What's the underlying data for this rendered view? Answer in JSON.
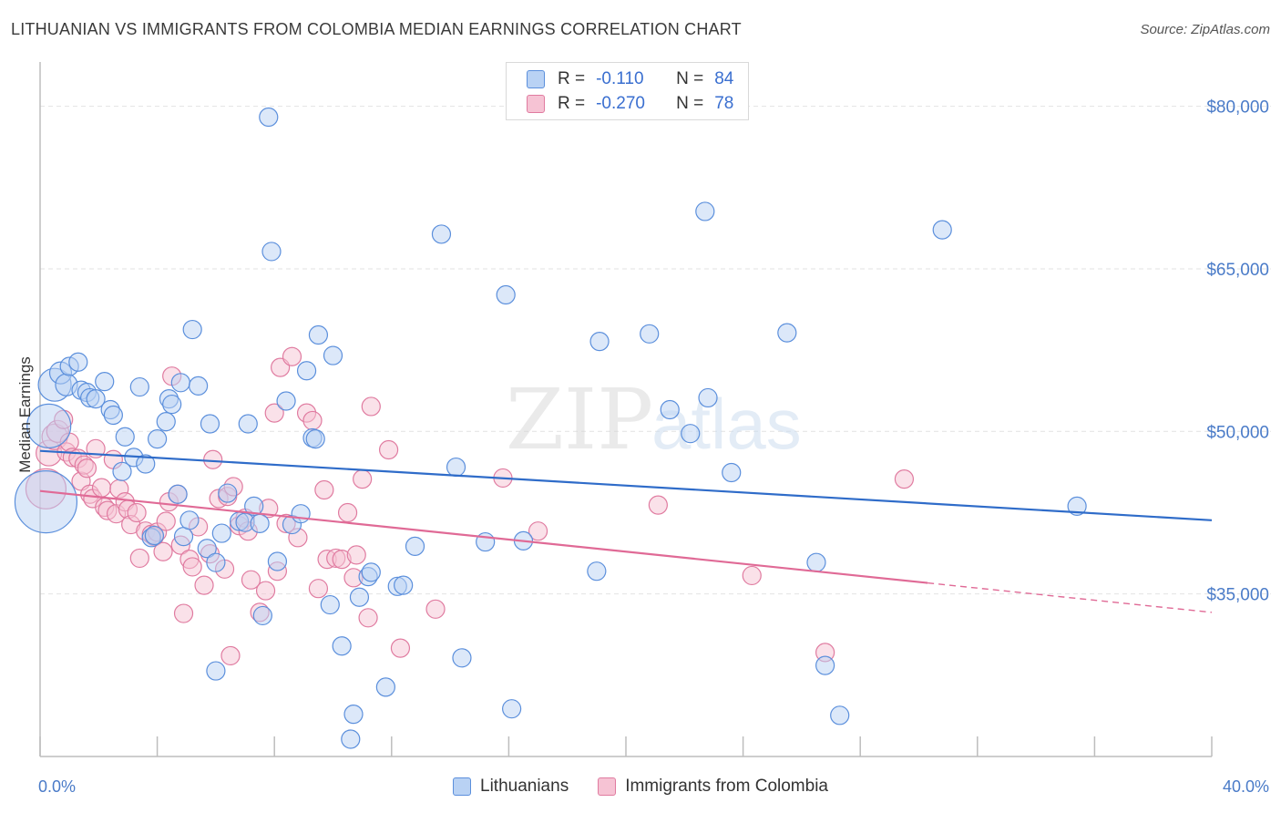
{
  "title": "LITHUANIAN VS IMMIGRANTS FROM COLOMBIA MEDIAN EARNINGS CORRELATION CHART",
  "source": "Source: ZipAtlas.com",
  "watermark": {
    "zip": "ZIP",
    "atlas": "atlas"
  },
  "legend": {
    "rows": [
      {
        "r_label": "R =",
        "r_value": "-0.110",
        "n_label": "N =",
        "n_value": "84"
      },
      {
        "r_label": "R =",
        "r_value": "-0.270",
        "n_label": "N =",
        "n_value": "78"
      }
    ]
  },
  "chart_data": {
    "type": "scatter",
    "title": "LITHUANIAN VS IMMIGRANTS FROM COLOMBIA MEDIAN EARNINGS CORRELATION CHART",
    "xlabel": "",
    "ylabel": "Median Earnings",
    "xlim": [
      0,
      40
    ],
    "ylim": [
      20000,
      83500
    ],
    "x_tick_labels": [
      {
        "value": 0,
        "label": "0.0%"
      },
      {
        "value": 40,
        "label": "40.0%"
      }
    ],
    "y_ticks": [
      {
        "value": 35000,
        "label": "$35,000"
      },
      {
        "value": 50000,
        "label": "$50,000"
      },
      {
        "value": 65000,
        "label": "$65,000"
      },
      {
        "value": 80000,
        "label": "$80,000"
      }
    ],
    "series": [
      {
        "name": "Lithuanians",
        "color": "#5b8fdc",
        "fill": "#b9d2f4",
        "r": -0.11,
        "n": 84,
        "trend": {
          "x": [
            0,
            40
          ],
          "y": [
            48200,
            41800
          ],
          "dashed_from": null
        },
        "points": [
          [
            0.2,
            43500,
            34
          ],
          [
            0.3,
            50500,
            24
          ],
          [
            0.5,
            54300,
            18
          ],
          [
            0.7,
            55400,
            12
          ],
          [
            0.9,
            54300,
            12
          ],
          [
            1.0,
            56000,
            10
          ],
          [
            1.3,
            56400,
            10
          ],
          [
            1.4,
            53800,
            10
          ],
          [
            1.6,
            53600,
            10
          ],
          [
            1.7,
            53100,
            10
          ],
          [
            1.9,
            53000,
            10
          ],
          [
            2.2,
            54600,
            10
          ],
          [
            2.4,
            52000,
            10
          ],
          [
            2.5,
            51500,
            10
          ],
          [
            2.8,
            46300,
            10
          ],
          [
            2.9,
            49500,
            10
          ],
          [
            3.2,
            47600,
            10
          ],
          [
            3.4,
            54100,
            10
          ],
          [
            3.6,
            47000,
            10
          ],
          [
            3.8,
            40200,
            10
          ],
          [
            3.9,
            40400,
            10
          ],
          [
            4.0,
            49300,
            10
          ],
          [
            4.3,
            50900,
            10
          ],
          [
            4.4,
            53000,
            10
          ],
          [
            4.5,
            52500,
            10
          ],
          [
            4.7,
            44200,
            10
          ],
          [
            4.8,
            54500,
            10
          ],
          [
            4.9,
            40300,
            10
          ],
          [
            5.1,
            41800,
            10
          ],
          [
            5.2,
            59400,
            10
          ],
          [
            5.4,
            54200,
            10
          ],
          [
            5.7,
            39200,
            10
          ],
          [
            5.8,
            50700,
            10
          ],
          [
            6.0,
            37900,
            10
          ],
          [
            6.0,
            27900,
            10
          ],
          [
            6.2,
            40600,
            10
          ],
          [
            6.4,
            44300,
            10
          ],
          [
            6.8,
            41700,
            10
          ],
          [
            7.0,
            41600,
            10
          ],
          [
            7.1,
            50700,
            10
          ],
          [
            7.3,
            43100,
            10
          ],
          [
            7.5,
            41500,
            10
          ],
          [
            7.6,
            33000,
            10
          ],
          [
            7.8,
            79000,
            10
          ],
          [
            7.9,
            66600,
            10
          ],
          [
            8.1,
            38000,
            10
          ],
          [
            8.4,
            52800,
            10
          ],
          [
            8.6,
            41400,
            10
          ],
          [
            8.9,
            42400,
            10
          ],
          [
            9.1,
            55600,
            10
          ],
          [
            9.3,
            49400,
            10
          ],
          [
            9.4,
            49300,
            10
          ],
          [
            9.5,
            58900,
            10
          ],
          [
            9.9,
            34000,
            10
          ],
          [
            10.0,
            57000,
            10
          ],
          [
            10.3,
            30200,
            10
          ],
          [
            10.6,
            21600,
            10
          ],
          [
            10.7,
            23900,
            10
          ],
          [
            10.9,
            34700,
            10
          ],
          [
            11.2,
            36600,
            10
          ],
          [
            11.3,
            37000,
            10
          ],
          [
            11.8,
            26400,
            10
          ],
          [
            12.2,
            35700,
            10
          ],
          [
            12.4,
            35800,
            10
          ],
          [
            12.8,
            39400,
            10
          ],
          [
            13.7,
            68200,
            10
          ],
          [
            14.2,
            46700,
            10
          ],
          [
            14.4,
            29100,
            10
          ],
          [
            15.2,
            39800,
            10
          ],
          [
            15.9,
            62600,
            10
          ],
          [
            16.1,
            24400,
            10
          ],
          [
            16.5,
            39900,
            10
          ],
          [
            19.0,
            37100,
            10
          ],
          [
            19.1,
            58300,
            10
          ],
          [
            20.8,
            59000,
            10
          ],
          [
            21.5,
            52000,
            10
          ],
          [
            22.2,
            49800,
            10
          ],
          [
            22.7,
            70300,
            10
          ],
          [
            22.8,
            53100,
            10
          ],
          [
            23.6,
            46200,
            10
          ],
          [
            25.5,
            59100,
            10
          ],
          [
            26.5,
            37900,
            10
          ],
          [
            26.8,
            28400,
            10
          ],
          [
            27.3,
            23800,
            10
          ],
          [
            30.8,
            68600,
            10
          ],
          [
            35.4,
            43100,
            10
          ]
        ]
      },
      {
        "name": "Immigrants from Colombia",
        "color": "#e07ba0",
        "fill": "#f6c3d4",
        "r": -0.27,
        "n": 78,
        "trend": {
          "x": [
            0,
            40
          ],
          "y": [
            44500,
            33300
          ],
          "dashed_from": 30.3
        },
        "points": [
          [
            0.2,
            44700,
            22
          ],
          [
            0.3,
            48000,
            14
          ],
          [
            0.5,
            49500,
            14
          ],
          [
            0.6,
            50000,
            12
          ],
          [
            0.8,
            51100,
            10
          ],
          [
            0.9,
            48100,
            10
          ],
          [
            1.0,
            49000,
            10
          ],
          [
            1.1,
            47600,
            10
          ],
          [
            1.3,
            47500,
            10
          ],
          [
            1.4,
            45400,
            10
          ],
          [
            1.5,
            46900,
            10
          ],
          [
            1.6,
            46600,
            10
          ],
          [
            1.7,
            44200,
            10
          ],
          [
            1.8,
            43800,
            10
          ],
          [
            1.9,
            48400,
            10
          ],
          [
            2.1,
            44800,
            10
          ],
          [
            2.2,
            43000,
            10
          ],
          [
            2.3,
            42700,
            10
          ],
          [
            2.5,
            47400,
            10
          ],
          [
            2.6,
            42400,
            10
          ],
          [
            2.7,
            44700,
            10
          ],
          [
            2.9,
            43500,
            10
          ],
          [
            3.0,
            42800,
            10
          ],
          [
            3.1,
            41400,
            10
          ],
          [
            3.3,
            42500,
            10
          ],
          [
            3.4,
            38300,
            10
          ],
          [
            3.6,
            40800,
            10
          ],
          [
            3.8,
            40500,
            10
          ],
          [
            3.9,
            40300,
            10
          ],
          [
            4.0,
            40700,
            10
          ],
          [
            4.2,
            38900,
            10
          ],
          [
            4.3,
            41700,
            10
          ],
          [
            4.4,
            43500,
            10
          ],
          [
            4.5,
            55100,
            10
          ],
          [
            4.7,
            44200,
            10
          ],
          [
            4.8,
            39500,
            10
          ],
          [
            4.9,
            33200,
            10
          ],
          [
            5.1,
            38200,
            10
          ],
          [
            5.2,
            37500,
            10
          ],
          [
            5.4,
            41200,
            10
          ],
          [
            5.6,
            35800,
            10
          ],
          [
            5.8,
            38700,
            10
          ],
          [
            5.9,
            47400,
            10
          ],
          [
            6.1,
            43800,
            10
          ],
          [
            6.3,
            37300,
            10
          ],
          [
            6.4,
            44000,
            10
          ],
          [
            6.5,
            29300,
            10
          ],
          [
            6.6,
            44900,
            10
          ],
          [
            6.8,
            41300,
            10
          ],
          [
            7.0,
            42000,
            10
          ],
          [
            7.1,
            40800,
            10
          ],
          [
            7.2,
            36300,
            10
          ],
          [
            7.5,
            33300,
            10
          ],
          [
            7.7,
            35300,
            10
          ],
          [
            7.8,
            42900,
            10
          ],
          [
            8.0,
            51700,
            10
          ],
          [
            8.1,
            37100,
            10
          ],
          [
            8.2,
            55900,
            10
          ],
          [
            8.4,
            41500,
            10
          ],
          [
            8.6,
            56900,
            10
          ],
          [
            8.8,
            40200,
            10
          ],
          [
            9.1,
            51700,
            10
          ],
          [
            9.3,
            51000,
            10
          ],
          [
            9.5,
            35500,
            10
          ],
          [
            9.7,
            44600,
            10
          ],
          [
            9.8,
            38200,
            10
          ],
          [
            10.1,
            38300,
            10
          ],
          [
            10.3,
            38200,
            10
          ],
          [
            10.5,
            42500,
            10
          ],
          [
            10.7,
            36500,
            10
          ],
          [
            10.8,
            38600,
            10
          ],
          [
            11.0,
            45600,
            10
          ],
          [
            11.2,
            32800,
            10
          ],
          [
            11.3,
            52300,
            10
          ],
          [
            11.9,
            48300,
            10
          ],
          [
            12.3,
            30000,
            10
          ],
          [
            13.5,
            33600,
            10
          ],
          [
            15.8,
            45700,
            10
          ],
          [
            17.0,
            40800,
            10
          ],
          [
            21.1,
            43200,
            10
          ],
          [
            24.3,
            36700,
            10
          ],
          [
            26.8,
            29600,
            10
          ],
          [
            29.5,
            45600,
            10
          ]
        ]
      }
    ]
  }
}
